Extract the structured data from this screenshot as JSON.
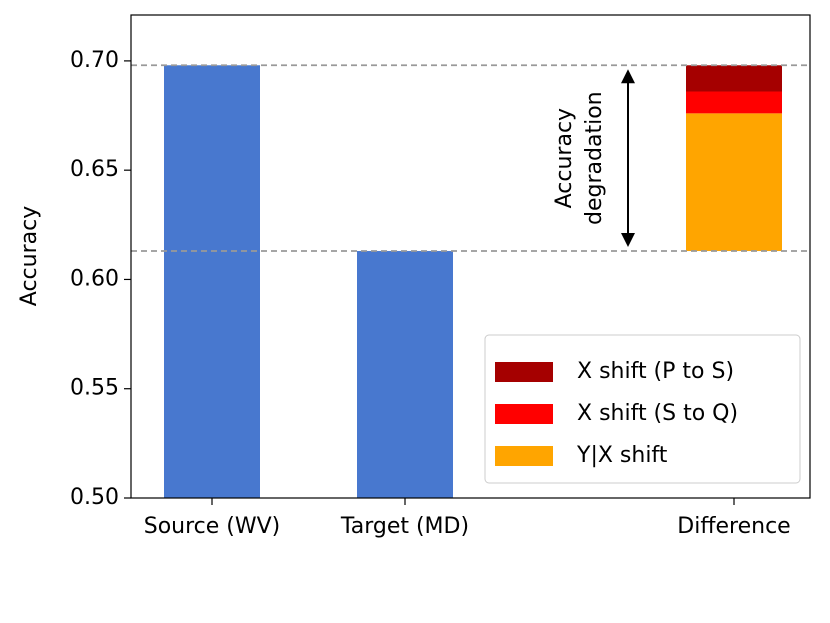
{
  "chart_data": {
    "type": "bar",
    "ylabel": "Accuracy",
    "categories": [
      "Source (WV)",
      "Target (MD)",
      "Difference"
    ],
    "values": [
      0.698,
      0.613,
      null
    ],
    "color": "#4878cf",
    "stack_series": [
      {
        "name": "X shift (P to S)",
        "color": "#a50000",
        "values": [
          null,
          null,
          0.012
        ]
      },
      {
        "name": "X shift (S to Q)",
        "color": "#ff0000",
        "values": [
          null,
          null,
          0.01
        ]
      },
      {
        "name": "Y|X shift",
        "color": "#ffa500",
        "values": [
          null,
          null,
          0.063
        ]
      }
    ],
    "annotation": [
      "Accuracy",
      "degradation"
    ],
    "ylim": [
      0.5,
      0.721
    ],
    "yticks": [
      {
        "value": 0.5,
        "label": "0.50"
      },
      {
        "value": 0.55,
        "label": "0.55"
      },
      {
        "value": 0.6,
        "label": "0.60"
      },
      {
        "value": 0.65,
        "label": "0.65"
      },
      {
        "value": 0.7,
        "label": "0.70"
      }
    ],
    "legend": "lower right"
  }
}
